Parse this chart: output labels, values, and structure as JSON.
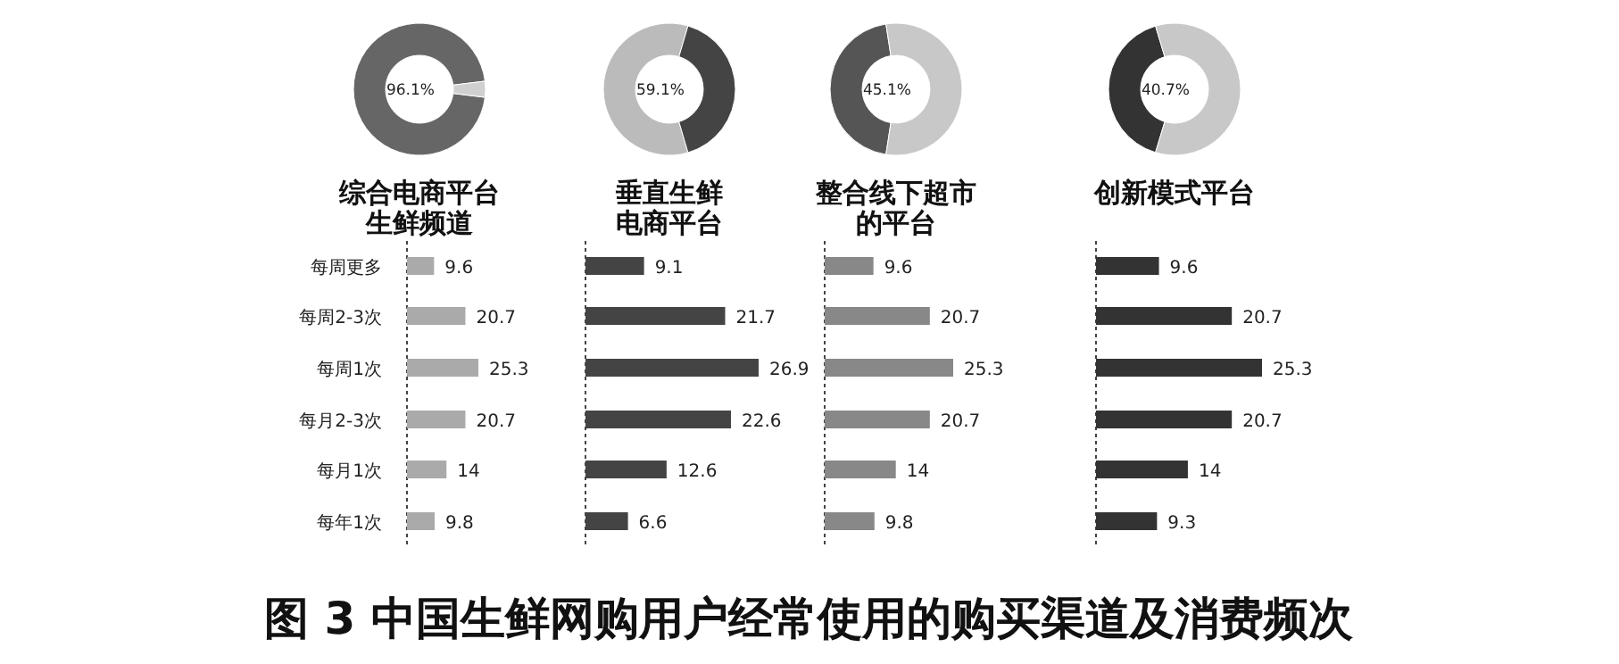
{
  "chart_data": [
    {
      "type": "donut",
      "title": "综合电商平台生鲜频道",
      "categories": [
        null,
        null
      ],
      "values": [
        96.1,
        3.9
      ],
      "colors": [
        "#666666",
        "#d0d0d0"
      ],
      "value_labels": [
        "96.1%",
        null
      ],
      "annotations": [
        "图 3 中国生鲜网购用户经常使用的购买渠道及消费频次"
      ]
    },
    {
      "type": "bar",
      "orientation": "horizontal",
      "categories": [
        "每周更多",
        "每周2-3次",
        "每周1次",
        "每月2-3次",
        "每月1次",
        "每年1次"
      ],
      "values": [
        9.6,
        20.7,
        25.3,
        20.7,
        14,
        9.8
      ],
      "color": "#aaaaaa",
      "data_labels": true
    },
    {
      "type": "donut",
      "title": "垂直生鲜电商平台",
      "categories": [
        null,
        null
      ],
      "values": [
        59.1,
        40.9
      ],
      "colors": [
        "#bbbbbb",
        "#444444"
      ],
      "value_labels": [
        "59.1%",
        null
      ]
    },
    {
      "type": "bar",
      "orientation": "horizontal",
      "categories": [
        null,
        null,
        null,
        null,
        null,
        null
      ],
      "values": [
        9.1,
        21.7,
        26.9,
        22.6,
        12.6,
        6.6
      ],
      "color": "#444444",
      "data_labels": true
    },
    {
      "type": "donut",
      "title": "整合线下超市的平台",
      "categories": [
        null,
        null
      ],
      "values": [
        45.1,
        54.9
      ],
      "colors": [
        "#555555",
        "#c8c8c8"
      ],
      "value_labels": [
        "45.1%",
        null
      ]
    },
    {
      "type": "bar",
      "orientation": "horizontal",
      "categories": [
        null,
        null,
        null,
        null,
        null,
        null
      ],
      "values": [
        9.6,
        20.7,
        25.3,
        20.7,
        14,
        9.8
      ],
      "color": "#888888",
      "data_labels": true
    },
    {
      "type": "donut",
      "title": "创新模式平台",
      "categories": [
        null,
        null
      ],
      "values": [
        40.7,
        59.3
      ],
      "colors": [
        "#333333",
        "#c8c8c8"
      ],
      "value_labels": [
        "40.7%",
        null
      ]
    },
    {
      "type": "bar",
      "orientation": "horizontal",
      "categories": [
        null,
        null,
        null,
        null,
        null,
        null
      ],
      "values": [
        9.6,
        20.7,
        25.3,
        20.7,
        14,
        9.3
      ],
      "color": "#333333",
      "data_labels": true
    }
  ]
}
